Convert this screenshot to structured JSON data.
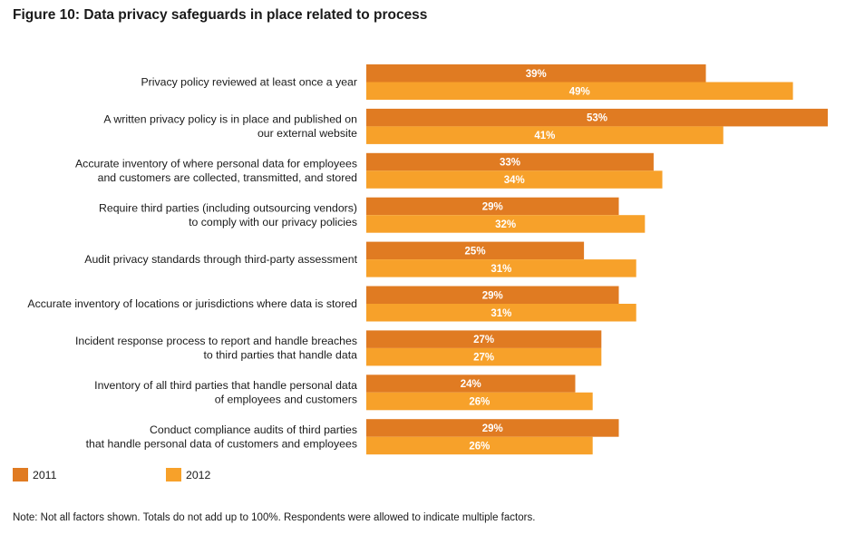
{
  "title": "Figure 10: Data privacy safeguards in place related to process",
  "note": "Note: Not all factors shown. Totals do not add up to 100%. Respondents were allowed to indicate multiple factors.",
  "colors": {
    "2011": "#E07B22",
    "2012": "#F7A12A"
  },
  "chart_data": {
    "type": "bar",
    "orientation": "horizontal",
    "categories": [
      [
        "Privacy policy reviewed at least once a year"
      ],
      [
        "A written privacy policy is in place and published on",
        "our external website"
      ],
      [
        "Accurate inventory of where personal data for employees",
        "and customers are collected, transmitted, and stored"
      ],
      [
        "Require third parties (including outsourcing vendors)",
        "to comply with our privacy policies"
      ],
      [
        "Audit privacy standards through third-party assessment"
      ],
      [
        "Accurate inventory of locations or jurisdictions where data is stored"
      ],
      [
        "Incident response process to report and handle breaches",
        "to third parties that handle data"
      ],
      [
        "Inventory of all third parties that handle personal data",
        "of employees and customers"
      ],
      [
        "Conduct compliance audits of third parties",
        "that handle personal data of customers and employees"
      ]
    ],
    "series": [
      {
        "name": "2011",
        "values": [
          39,
          53,
          33,
          29,
          25,
          29,
          27,
          24,
          29
        ],
        "labels": [
          "39%",
          "53%",
          "33%",
          "29%",
          "25%",
          "29%",
          "27%",
          "24%",
          "29%"
        ]
      },
      {
        "name": "2012",
        "values": [
          49,
          41,
          34,
          32,
          31,
          31,
          27,
          26,
          26
        ],
        "labels": [
          "49%",
          "41%",
          "34%",
          "32%",
          "31%",
          "31%",
          "27%",
          "26%",
          "26%"
        ]
      }
    ],
    "xlim": [
      0,
      53
    ],
    "grid": false,
    "legend": "bottom-left"
  }
}
